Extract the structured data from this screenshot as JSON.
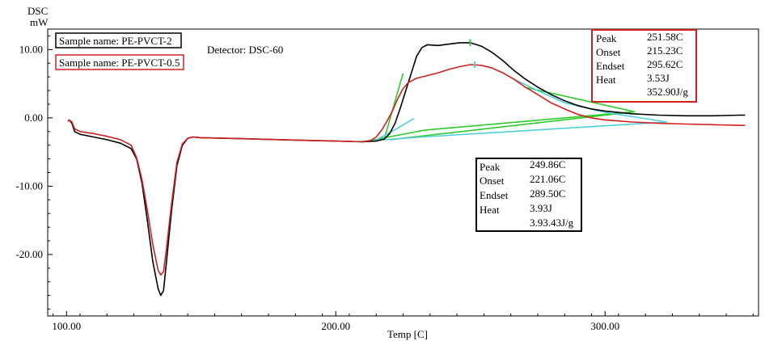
{
  "chart_data": {
    "type": "line",
    "title": "",
    "ylabel": "DSC",
    "yunit": "mW",
    "xlabel": "Temp [C]",
    "xlim": [
      93,
      357
    ],
    "ylim": [
      -29,
      13
    ],
    "x_ticks": [
      100,
      200,
      300
    ],
    "x_tick_labels": [
      "100.00",
      "200.00",
      "300.00"
    ],
    "y_ticks": [
      10,
      0,
      -10,
      -20
    ],
    "y_tick_labels": [
      "10.00",
      "0.00",
      "-10.00",
      "-20.00"
    ],
    "detector": "Detector: DSC-60",
    "legend": [
      {
        "label": "Sample name: PE-PVCT-2",
        "color": "#000000"
      },
      {
        "label": "Sample name: PE-PVCT-0.5",
        "color": "#d41f1f"
      }
    ],
    "series": [
      {
        "name": "PE-PVCT-2",
        "color": "#000000",
        "points": [
          [
            100.5,
            -0.5
          ],
          [
            101,
            -0.3
          ],
          [
            102,
            -0.8
          ],
          [
            103,
            -2.0
          ],
          [
            105,
            -2.4
          ],
          [
            110,
            -2.8
          ],
          [
            115,
            -3.2
          ],
          [
            120,
            -3.7
          ],
          [
            124,
            -4.5
          ],
          [
            126,
            -6.0
          ],
          [
            128,
            -9.5
          ],
          [
            130,
            -15.0
          ],
          [
            132,
            -21.0
          ],
          [
            134,
            -25.0
          ],
          [
            135,
            -26.0
          ],
          [
            136,
            -25.3
          ],
          [
            137,
            -21.5
          ],
          [
            139,
            -13.5
          ],
          [
            141,
            -7.0
          ],
          [
            143,
            -4.0
          ],
          [
            145,
            -3.0
          ],
          [
            147,
            -2.8
          ],
          [
            150,
            -2.9
          ],
          [
            160,
            -3.0
          ],
          [
            170,
            -3.1
          ],
          [
            180,
            -3.2
          ],
          [
            190,
            -3.3
          ],
          [
            200,
            -3.4
          ],
          [
            210,
            -3.5
          ],
          [
            215,
            -3.4
          ],
          [
            218,
            -3.1
          ],
          [
            220,
            -2.3
          ],
          [
            222,
            -0.8
          ],
          [
            224,
            1.5
          ],
          [
            226,
            4.0
          ],
          [
            228,
            6.5
          ],
          [
            230,
            9.0
          ],
          [
            232,
            10.3
          ],
          [
            234,
            10.7
          ],
          [
            238,
            10.6
          ],
          [
            242,
            10.8
          ],
          [
            246,
            11.0
          ],
          [
            250,
            11.0
          ],
          [
            254,
            10.5
          ],
          [
            258,
            9.6
          ],
          [
            262,
            8.4
          ],
          [
            266,
            7.0
          ],
          [
            270,
            5.8
          ],
          [
            275,
            4.5
          ],
          [
            280,
            3.4
          ],
          [
            285,
            2.5
          ],
          [
            290,
            1.8
          ],
          [
            295,
            1.3
          ],
          [
            300,
            1.0
          ],
          [
            310,
            0.6
          ],
          [
            320,
            0.4
          ],
          [
            330,
            0.3
          ],
          [
            340,
            0.3
          ],
          [
            350,
            0.4
          ],
          [
            352,
            0.4
          ]
        ]
      },
      {
        "name": "PE-PVCT-0.5",
        "color": "#d41f1f",
        "points": [
          [
            100.5,
            -0.5
          ],
          [
            101,
            -0.3
          ],
          [
            102,
            -0.6
          ],
          [
            103,
            -1.6
          ],
          [
            105,
            -2.0
          ],
          [
            110,
            -2.3
          ],
          [
            115,
            -2.7
          ],
          [
            120,
            -3.2
          ],
          [
            124,
            -4.0
          ],
          [
            126,
            -5.8
          ],
          [
            128,
            -9.0
          ],
          [
            130,
            -13.5
          ],
          [
            132,
            -18.5
          ],
          [
            134,
            -22.3
          ],
          [
            135,
            -23.0
          ],
          [
            136,
            -22.5
          ],
          [
            137,
            -19.5
          ],
          [
            139,
            -12.5
          ],
          [
            141,
            -6.5
          ],
          [
            143,
            -3.8
          ],
          [
            145,
            -3.0
          ],
          [
            147,
            -2.8
          ],
          [
            150,
            -2.9
          ],
          [
            160,
            -3.0
          ],
          [
            170,
            -3.1
          ],
          [
            180,
            -3.2
          ],
          [
            190,
            -3.3
          ],
          [
            200,
            -3.4
          ],
          [
            210,
            -3.5
          ],
          [
            213,
            -3.3
          ],
          [
            215,
            -2.8
          ],
          [
            217,
            -1.8
          ],
          [
            219,
            -0.5
          ],
          [
            221,
            1.0
          ],
          [
            223,
            2.8
          ],
          [
            225,
            4.3
          ],
          [
            227,
            5.2
          ],
          [
            230,
            5.8
          ],
          [
            234,
            6.2
          ],
          [
            238,
            6.6
          ],
          [
            242,
            7.1
          ],
          [
            246,
            7.5
          ],
          [
            250,
            7.8
          ],
          [
            254,
            7.7
          ],
          [
            258,
            7.3
          ],
          [
            262,
            6.6
          ],
          [
            266,
            5.7
          ],
          [
            270,
            4.6
          ],
          [
            275,
            3.4
          ],
          [
            280,
            2.2
          ],
          [
            285,
            1.3
          ],
          [
            290,
            0.5
          ],
          [
            295,
            0.0
          ],
          [
            300,
            -0.3
          ],
          [
            310,
            -0.6
          ],
          [
            320,
            -0.8
          ],
          [
            330,
            -0.9
          ],
          [
            340,
            -1.0
          ],
          [
            350,
            -1.1
          ],
          [
            352,
            -1.1
          ]
        ]
      }
    ],
    "analysis_lines": [
      {
        "color": "#2ecc2e",
        "points": [
          [
            218,
            -3.1
          ],
          [
            224,
            5.2
          ],
          [
            225,
            6.5
          ]
        ]
      },
      {
        "color": "#2ecc2e",
        "points": [
          [
            220,
            -3.2
          ],
          [
            311,
            0.9
          ]
        ]
      },
      {
        "color": "#2ecc2e",
        "points": [
          [
            210,
            -3.5
          ],
          [
            233,
            -1.8
          ],
          [
            311,
            0.9
          ],
          [
            270,
            4.5
          ]
        ]
      },
      {
        "color": "#4fd0d8",
        "points": [
          [
            207,
            -3.5
          ],
          [
            232,
            -2.8
          ],
          [
            323,
            -0.6
          ]
        ]
      },
      {
        "color": "#4fd0d8",
        "points": [
          [
            214,
            -3.4
          ],
          [
            218,
            -2.6
          ],
          [
            223,
            -1.5
          ],
          [
            229,
            -0.1
          ]
        ]
      },
      {
        "color": "#4fd0d8",
        "points": [
          [
            266,
            5.7
          ],
          [
            275,
            4.0
          ],
          [
            285,
            2.2
          ],
          [
            300,
            0.8
          ],
          [
            323,
            -0.6
          ]
        ]
      }
    ],
    "markers": [
      {
        "x": 249.9,
        "y": 11.0,
        "color": "#2ecc2e"
      },
      {
        "x": 251.6,
        "y": 7.8,
        "color": "#4fd0d8"
      }
    ],
    "annotations": [
      {
        "id": "black",
        "border": "#000000",
        "rows": [
          {
            "label": "Peak",
            "value": "249.86C"
          },
          {
            "label": "Onset",
            "value": "221.06C"
          },
          {
            "label": "Endset",
            "value": "289.50C"
          },
          {
            "label": "Heat",
            "value": "3.93J"
          },
          {
            "label": "",
            "value": "3.93.43J/g"
          }
        ]
      },
      {
        "id": "red",
        "border": "#d41f1f",
        "rows": [
          {
            "label": "Peak",
            "value": "251.58C"
          },
          {
            "label": "Onset",
            "value": "215.23C"
          },
          {
            "label": "Endset",
            "value": "295.62C"
          },
          {
            "label": "Heat",
            "value": "3.53J"
          },
          {
            "label": "",
            "value": "352.90J/g"
          }
        ]
      }
    ]
  }
}
